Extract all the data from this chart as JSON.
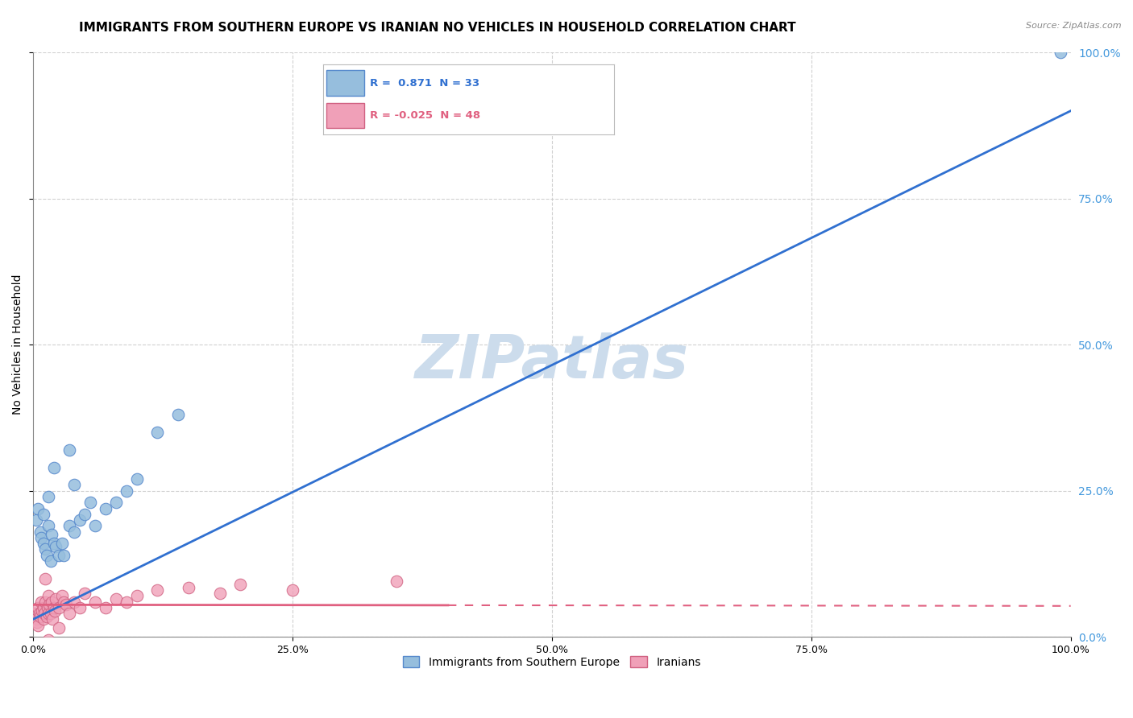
{
  "title": "IMMIGRANTS FROM SOUTHERN EUROPE VS IRANIAN NO VEHICLES IN HOUSEHOLD CORRELATION CHART",
  "source": "Source: ZipAtlas.com",
  "ylabel": "No Vehicles in Household",
  "ytick_values": [
    0,
    25,
    50,
    75,
    100
  ],
  "xtick_values": [
    0,
    25,
    50,
    75,
    100
  ],
  "legend_entries": [
    {
      "label": "Immigrants from Southern Europe",
      "color": "#aac8e8"
    },
    {
      "label": "Iranians",
      "color": "#f4a8bc"
    }
  ],
  "R_blue": 0.871,
  "N_blue": 33,
  "R_pink": -0.025,
  "N_pink": 48,
  "blue_scatter_x": [
    0.3,
    0.5,
    0.7,
    0.8,
    1.0,
    1.2,
    1.3,
    1.5,
    1.5,
    1.7,
    1.8,
    2.0,
    2.2,
    2.5,
    2.8,
    3.0,
    3.5,
    4.0,
    4.5,
    5.0,
    5.5,
    6.0,
    7.0,
    8.0,
    9.0,
    10.0,
    12.0,
    14.0,
    2.0,
    3.5,
    1.0,
    4.0,
    99.0
  ],
  "blue_scatter_y": [
    20.0,
    22.0,
    18.0,
    17.0,
    16.0,
    15.0,
    14.0,
    19.0,
    24.0,
    13.0,
    17.5,
    16.0,
    15.5,
    14.0,
    16.0,
    14.0,
    19.0,
    18.0,
    20.0,
    21.0,
    23.0,
    19.0,
    22.0,
    23.0,
    25.0,
    27.0,
    35.0,
    38.0,
    29.0,
    32.0,
    21.0,
    26.0,
    100.0
  ],
  "pink_scatter_x": [
    0.2,
    0.3,
    0.4,
    0.5,
    0.5,
    0.6,
    0.7,
    0.8,
    0.9,
    1.0,
    1.0,
    1.1,
    1.2,
    1.3,
    1.4,
    1.5,
    1.5,
    1.6,
    1.7,
    1.8,
    1.9,
    2.0,
    2.1,
    2.2,
    2.5,
    2.8,
    3.0,
    3.2,
    3.5,
    4.0,
    4.5,
    5.0,
    6.0,
    7.0,
    8.0,
    9.0,
    10.0,
    12.0,
    15.0,
    18.0,
    20.0,
    25.0,
    35.0,
    0.8,
    1.5,
    2.5,
    3.8,
    1.2
  ],
  "pink_scatter_y": [
    4.0,
    3.0,
    2.5,
    5.0,
    2.0,
    4.0,
    3.5,
    6.0,
    4.5,
    5.0,
    3.0,
    4.0,
    6.0,
    3.5,
    5.0,
    7.0,
    4.0,
    5.5,
    4.0,
    6.0,
    3.0,
    5.0,
    4.5,
    6.5,
    5.0,
    7.0,
    6.0,
    5.5,
    4.0,
    6.0,
    5.0,
    7.5,
    6.0,
    5.0,
    6.5,
    6.0,
    7.0,
    8.0,
    8.5,
    7.5,
    9.0,
    8.0,
    9.5,
    -1.0,
    -0.5,
    1.5,
    -2.0,
    10.0
  ],
  "background_color": "#ffffff",
  "grid_color": "#cccccc",
  "blue_line_color": "#3070d0",
  "pink_line_color": "#e06080",
  "blue_dot_color": "#96bedd",
  "blue_dot_edge": "#5588cc",
  "pink_dot_color": "#f0a0b8",
  "pink_dot_edge": "#d06080",
  "watermark_color": "#ccdcec",
  "title_fontsize": 11,
  "axis_label_fontsize": 10,
  "tick_fontsize": 9,
  "legend_fontsize": 10,
  "right_tick_color": "#4499dd"
}
